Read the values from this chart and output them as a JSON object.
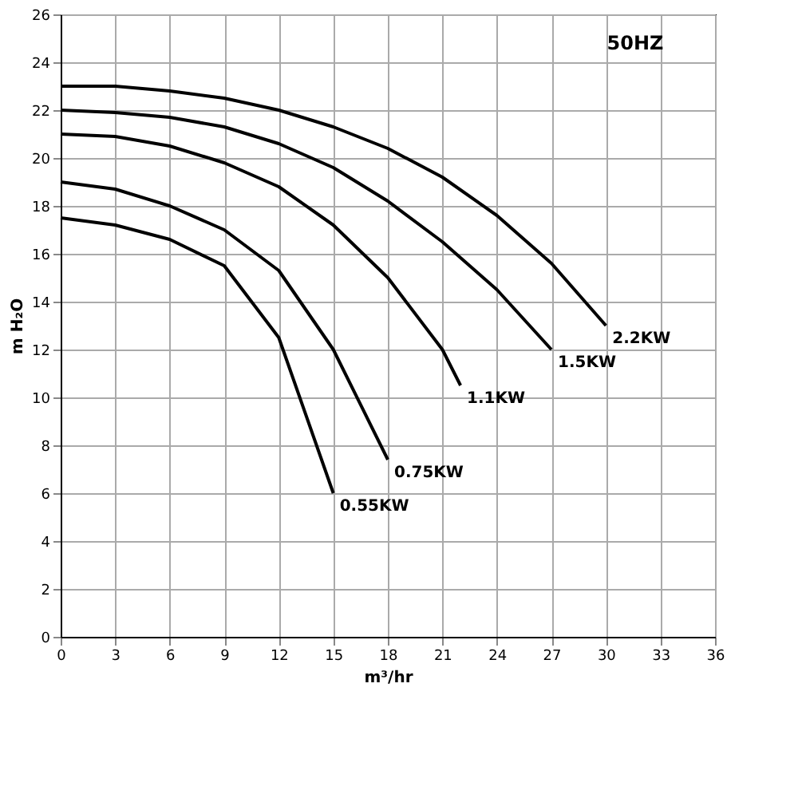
{
  "chart_data": {
    "type": "line",
    "xlabel": "m³/hr",
    "ylabel": "m H₂O",
    "xlim": [
      0,
      36
    ],
    "xticks": [
      0,
      3,
      6,
      9,
      12,
      15,
      18,
      21,
      24,
      27,
      30,
      33,
      36
    ],
    "ylim": [
      0,
      26
    ],
    "yticks": [
      0,
      2,
      4,
      6,
      8,
      10,
      12,
      14,
      16,
      18,
      20,
      22,
      24,
      26
    ],
    "grid": true,
    "marker": "none",
    "line_style": "solid",
    "annotations": [
      "50HZ"
    ],
    "series": [
      {
        "name": "0.55KW",
        "color": "#000000",
        "x": [
          0,
          3,
          6,
          9,
          12,
          15
        ],
        "values": [
          17.5,
          17.2,
          16.6,
          15.5,
          12.5,
          6
        ]
      },
      {
        "name": "0.75KW",
        "color": "#000000",
        "x": [
          0,
          3,
          6,
          9,
          12,
          15,
          18
        ],
        "values": [
          19,
          18.7,
          18,
          17,
          15.3,
          12,
          7.4
        ]
      },
      {
        "name": "1.1KW",
        "color": "#000000",
        "x": [
          0,
          3,
          6,
          9,
          12,
          15,
          18,
          21,
          22
        ],
        "values": [
          21,
          20.9,
          20.5,
          19.8,
          18.8,
          17.2,
          15,
          12,
          10.5
        ]
      },
      {
        "name": "1.5KW",
        "color": "#000000",
        "x": [
          0,
          3,
          6,
          9,
          12,
          15,
          18,
          21,
          24,
          27
        ],
        "values": [
          22,
          21.9,
          21.7,
          21.3,
          20.6,
          19.6,
          18.2,
          16.5,
          14.5,
          12
        ]
      },
      {
        "name": "2.2KW",
        "color": "#000000",
        "x": [
          0,
          3,
          6,
          9,
          12,
          15,
          18,
          21,
          24,
          27,
          30
        ],
        "values": [
          23,
          23,
          22.8,
          22.5,
          22,
          21.3,
          20.4,
          19.2,
          17.6,
          15.6,
          13
        ]
      }
    ]
  }
}
